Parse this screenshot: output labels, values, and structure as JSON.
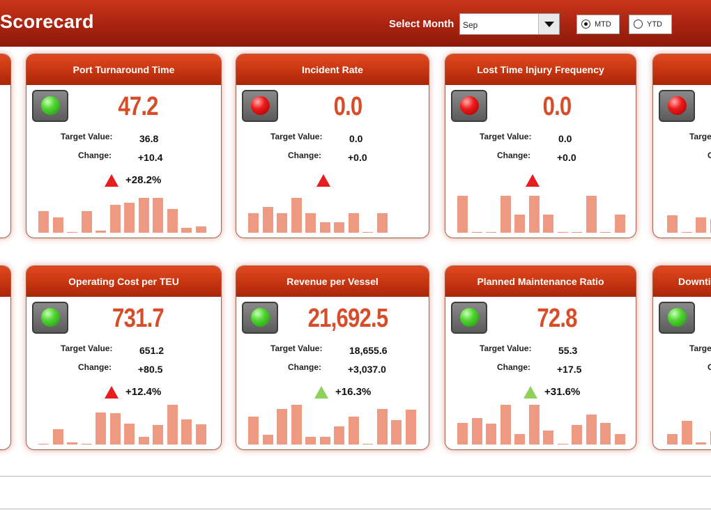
{
  "header": {
    "title": "Scorecard",
    "month_label": "Select Month",
    "month_value": "Sep",
    "mtd_label": "MTD",
    "ytd_label": "YTD",
    "selected_period": "MTD"
  },
  "labels": {
    "target": "Target Value:",
    "change": "Change:"
  },
  "colors": {
    "accent": "#c3330f",
    "bar": "#ee9a83",
    "value": "#d64d2a",
    "arrow_red": "#e81e1e",
    "arrow_green": "#8fd05a"
  },
  "cards": [
    {
      "title": "Port Turnaround Time",
      "status": "green",
      "value": "47.2",
      "target": "36.8",
      "change": "+10.4",
      "trend": "up",
      "trend_color": "red",
      "pct": "+28.2%",
      "bars": [
        0.5,
        0.35,
        0,
        0.5,
        0.05,
        0.65,
        0.7,
        0.8,
        0.8,
        0.55,
        0.12,
        0.15
      ]
    },
    {
      "title": "Incident Rate",
      "status": "red",
      "value": "0.0",
      "target": "0.0",
      "change": "+0.0",
      "trend": "up",
      "trend_color": "red",
      "pct": "",
      "bars": [
        0.45,
        0.6,
        0.45,
        0.8,
        0.45,
        0.25,
        0.25,
        0.45,
        0,
        0.45
      ]
    },
    {
      "title": "Lost Time Injury Frequency",
      "status": "red",
      "value": "0.0",
      "target": "0.0",
      "change": "+0.0",
      "trend": "up",
      "trend_color": "red",
      "pct": "",
      "bars": [
        0.85,
        0,
        0,
        0.85,
        0.42,
        0.85,
        0.42,
        0,
        0,
        0.85,
        0,
        0.42
      ]
    },
    {
      "title": "",
      "status": "red",
      "value": "",
      "target": "",
      "change": "",
      "trend": "",
      "trend_color": "red",
      "pct": "",
      "target_label": "Targe",
      "change_label": "C",
      "bars": [
        0.4,
        0,
        0.35,
        0.3
      ]
    },
    {
      "title": "Operating Cost per TEU",
      "status": "green",
      "value": "731.7",
      "target": "651.2",
      "change": "+80.5",
      "trend": "up",
      "trend_color": "red",
      "pct": "+12.4%",
      "bars": [
        0,
        0.35,
        0.05,
        0,
        0.75,
        0.72,
        0.48,
        0.17,
        0.45,
        0.92,
        0.58,
        0.47
      ]
    },
    {
      "title": "Revenue per Vessel",
      "status": "green",
      "value": "21,692.5",
      "target": "18,655.6",
      "change": "+3,037.0",
      "trend": "up",
      "trend_color": "green",
      "pct": "+16.3%",
      "bars": [
        0.65,
        0.22,
        0.82,
        0.92,
        0.18,
        0.18,
        0.42,
        0.64,
        0,
        0.83,
        0.56,
        0.8
      ]
    },
    {
      "title": "Planned Maintenance Ratio",
      "status": "green",
      "value": "72.8",
      "target": "55.3",
      "change": "+17.5",
      "trend": "up",
      "trend_color": "green",
      "pct": "+31.6%",
      "bars": [
        0.5,
        0.62,
        0.48,
        0.92,
        0.25,
        0.92,
        0.32,
        0,
        0.45,
        0.7,
        0.5,
        0.25
      ]
    },
    {
      "title": "Downti",
      "status": "green",
      "value": "",
      "target": "",
      "change": "",
      "trend": "",
      "trend_color": "green",
      "pct": "",
      "target_label": "Target",
      "change_label": "C",
      "bars": [
        0.25,
        0.55,
        0.05,
        0.3
      ]
    }
  ],
  "left_stub_rows": 2
}
